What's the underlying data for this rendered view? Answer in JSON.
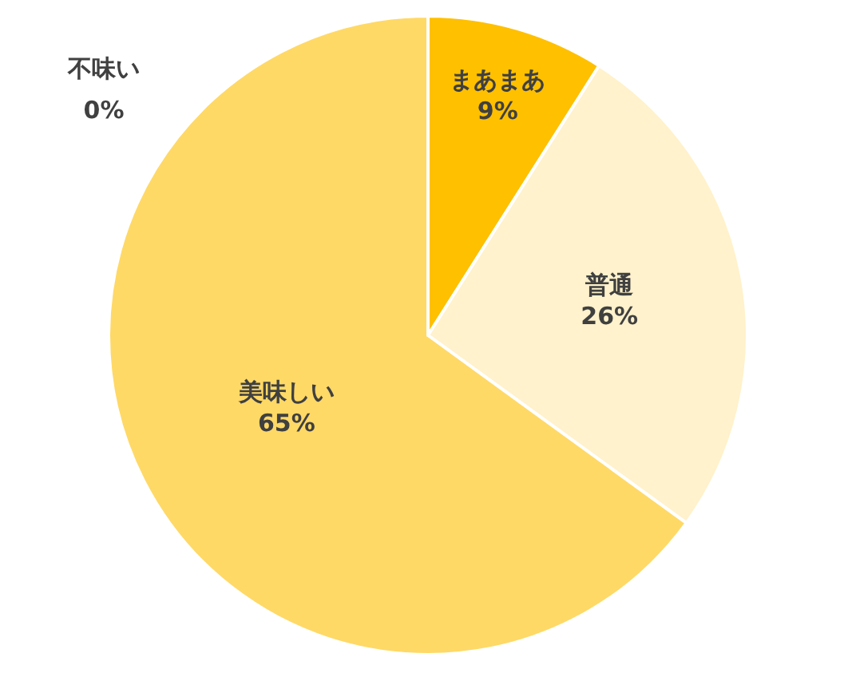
{
  "chart_data": {
    "type": "pie",
    "categories": [
      "まあまあ",
      "普通",
      "美味しい",
      "不味い"
    ],
    "values": [
      9,
      26,
      65,
      0
    ],
    "colors": [
      "#ffc000",
      "#fff2cc",
      "#ffd966",
      "#f4b183"
    ],
    "value_labels": [
      "9%",
      "26%",
      "65%",
      "0%"
    ]
  }
}
